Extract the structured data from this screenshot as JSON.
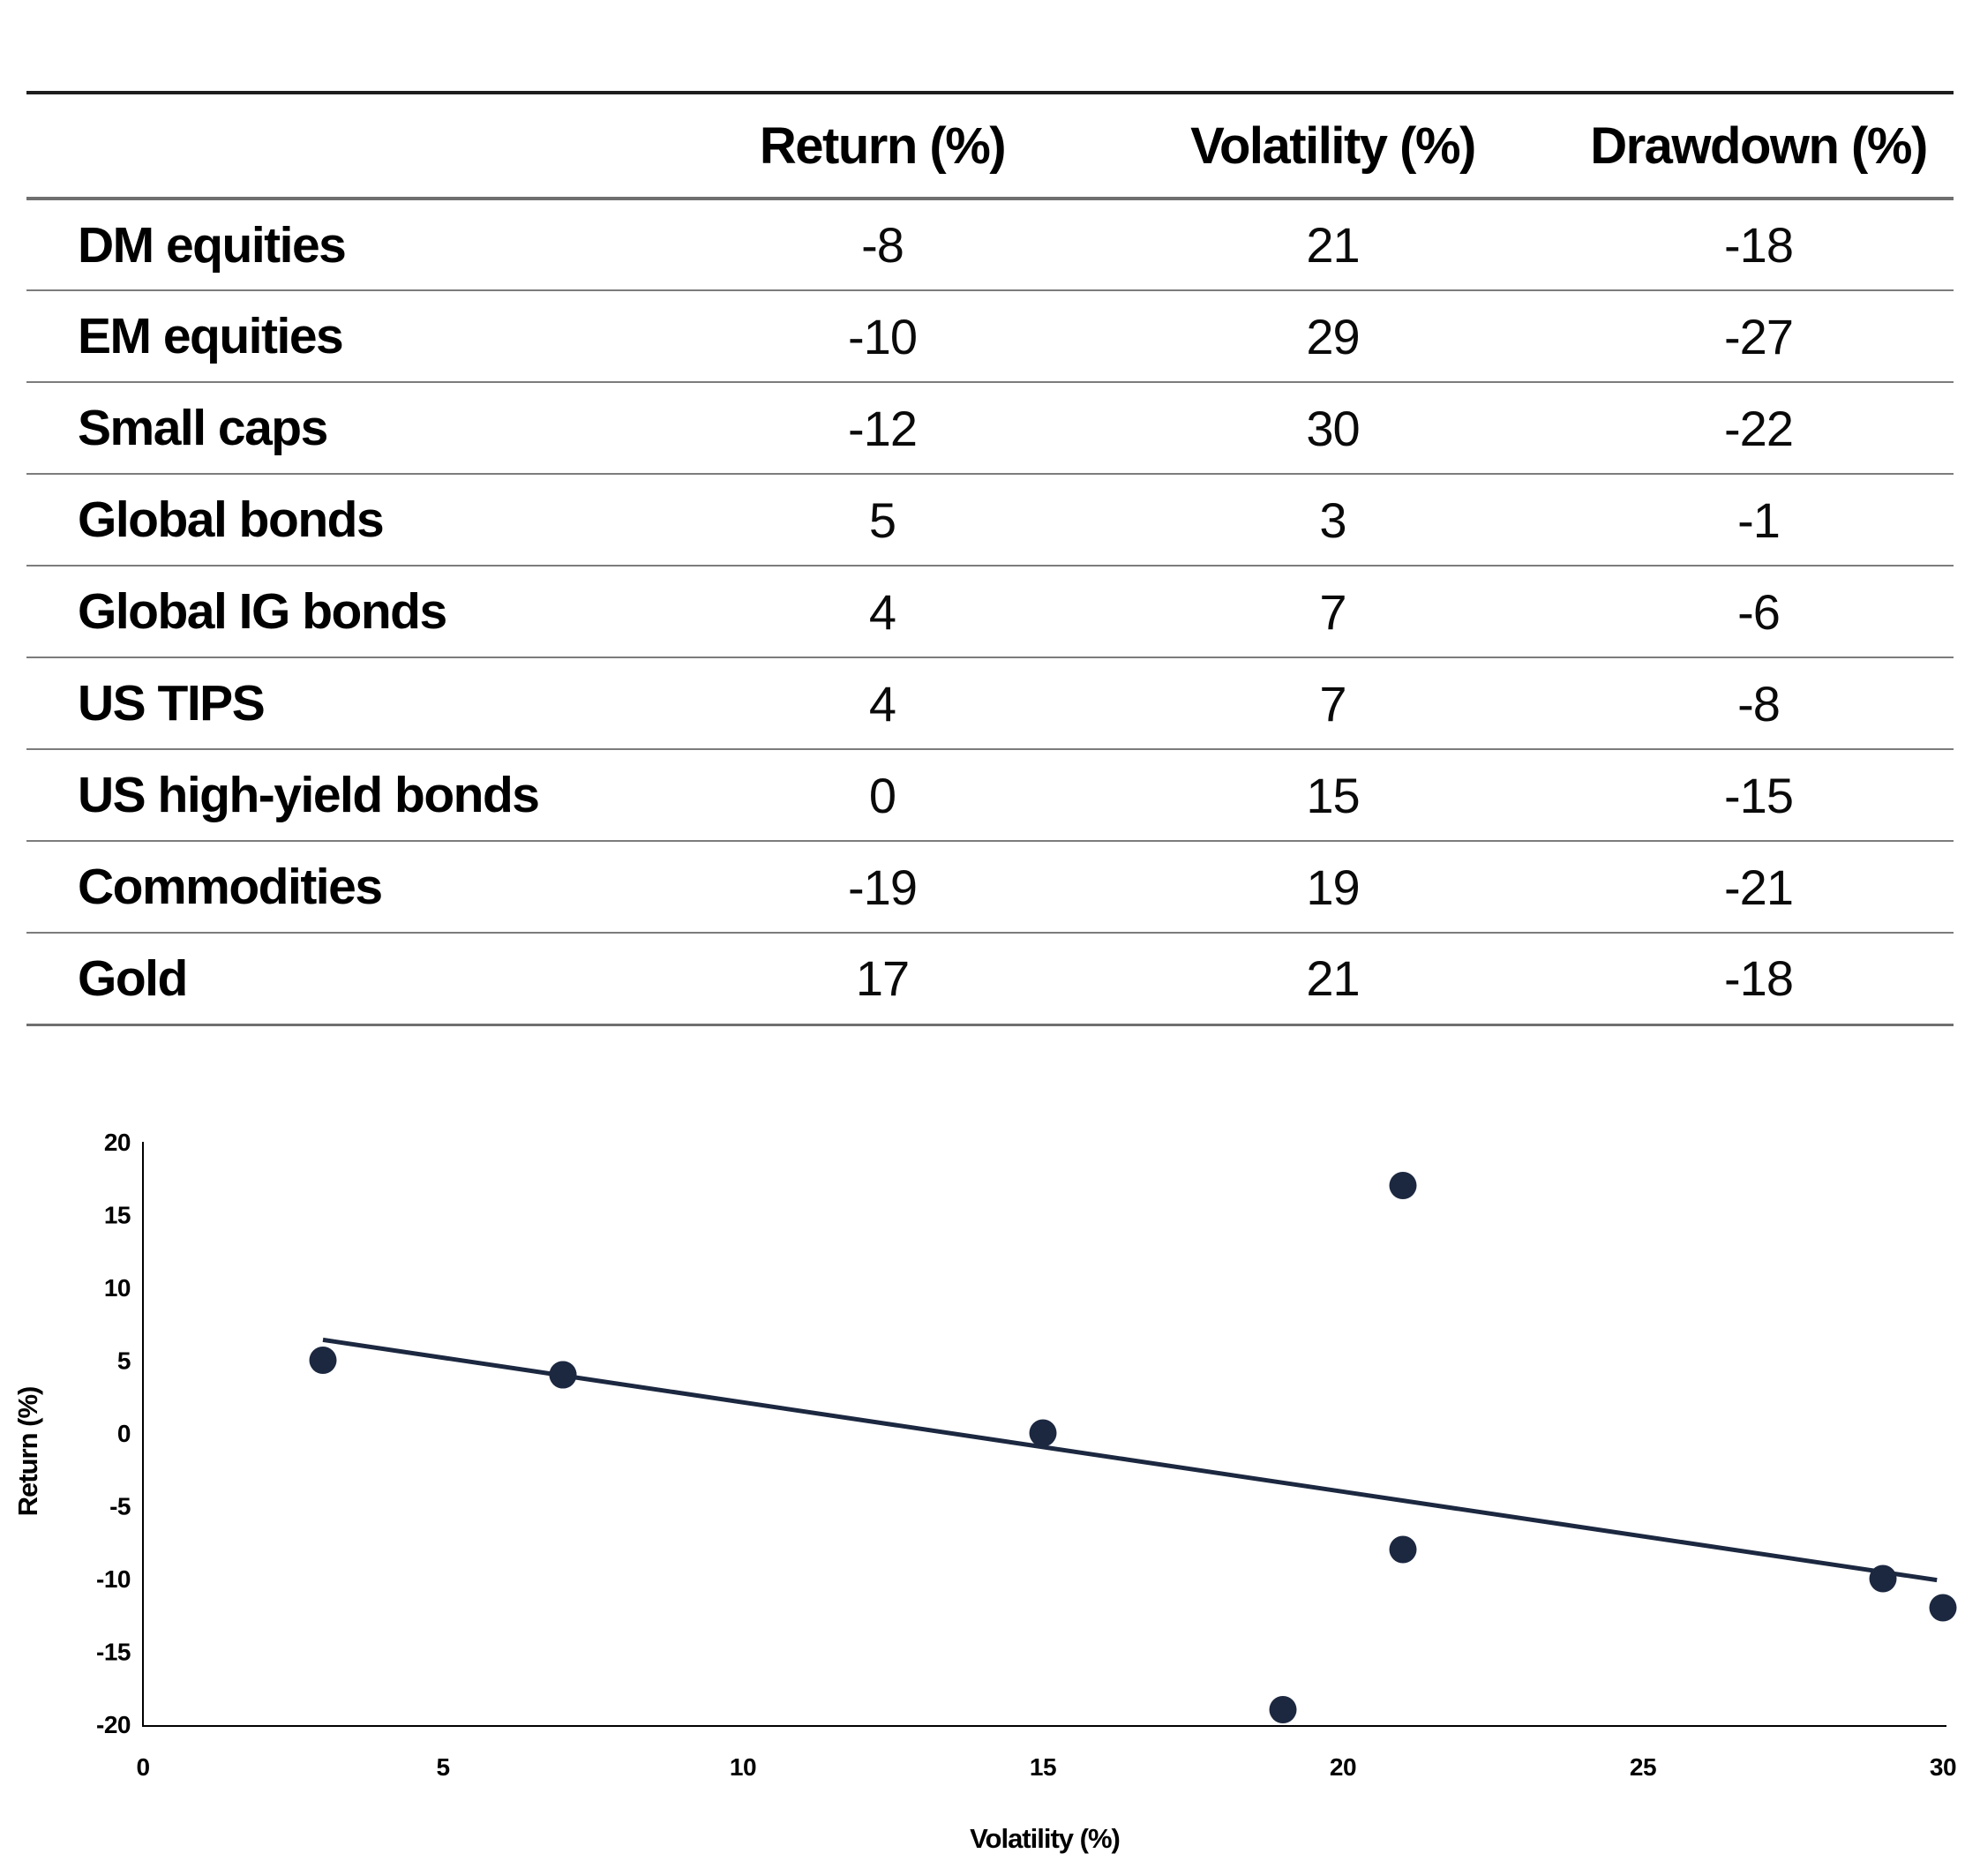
{
  "table": {
    "columns": [
      "Return (%)",
      "Volatility (%)",
      "Drawdown (%)"
    ],
    "rows": [
      {
        "label": "DM equities",
        "return": "-8",
        "volatility": "21",
        "drawdown": "-18"
      },
      {
        "label": "EM equities",
        "return": "-10",
        "volatility": "29",
        "drawdown": "-27"
      },
      {
        "label": "Small caps",
        "return": "-12",
        "volatility": "30",
        "drawdown": "-22"
      },
      {
        "label": "Global bonds",
        "return": "5",
        "volatility": "3",
        "drawdown": "-1"
      },
      {
        "label": "Global IG bonds",
        "return": "4",
        "volatility": "7",
        "drawdown": "-6"
      },
      {
        "label": "US TIPS",
        "return": "4",
        "volatility": "7",
        "drawdown": "-8"
      },
      {
        "label": "US high-yield bonds",
        "return": "0",
        "volatility": "15",
        "drawdown": "-15"
      },
      {
        "label": "Commodities",
        "return": "-19",
        "volatility": "19",
        "drawdown": "-21"
      },
      {
        "label": "Gold",
        "return": "17",
        "volatility": "21",
        "drawdown": "-18"
      }
    ]
  },
  "chart_data": {
    "type": "scatter",
    "xlabel": "Volatility (%)",
    "ylabel": "Return (%)",
    "xlim": [
      0,
      30
    ],
    "ylim": [
      -20,
      20
    ],
    "x_ticks": [
      0,
      5,
      10,
      15,
      20,
      25,
      30
    ],
    "y_ticks": [
      20,
      15,
      10,
      5,
      0,
      -5,
      -10,
      -15,
      -20
    ],
    "grid": false,
    "legend": "none",
    "points": [
      {
        "name": "Global bonds",
        "x": 3,
        "y": 5
      },
      {
        "name": "Global IG bonds",
        "x": 7,
        "y": 4
      },
      {
        "name": "US TIPS",
        "x": 7,
        "y": 4
      },
      {
        "name": "US high-yield bonds",
        "x": 15,
        "y": 0
      },
      {
        "name": "Commodities",
        "x": 19,
        "y": -19
      },
      {
        "name": "DM equities",
        "x": 21,
        "y": -8
      },
      {
        "name": "Gold",
        "x": 21,
        "y": 17
      },
      {
        "name": "EM equities",
        "x": 29,
        "y": -10
      },
      {
        "name": "Small caps",
        "x": 30,
        "y": -12
      }
    ],
    "trendline": {
      "x1": 3,
      "y1": 6.4,
      "x2": 29.9,
      "y2": -10.1
    }
  },
  "colors": {
    "marker_navy": "#1c2840",
    "axis_black": "#000000",
    "rule_dark": "#1e1e1e",
    "rule_medium": "#6f6f6f",
    "rule_light": "#7c7c7c"
  }
}
